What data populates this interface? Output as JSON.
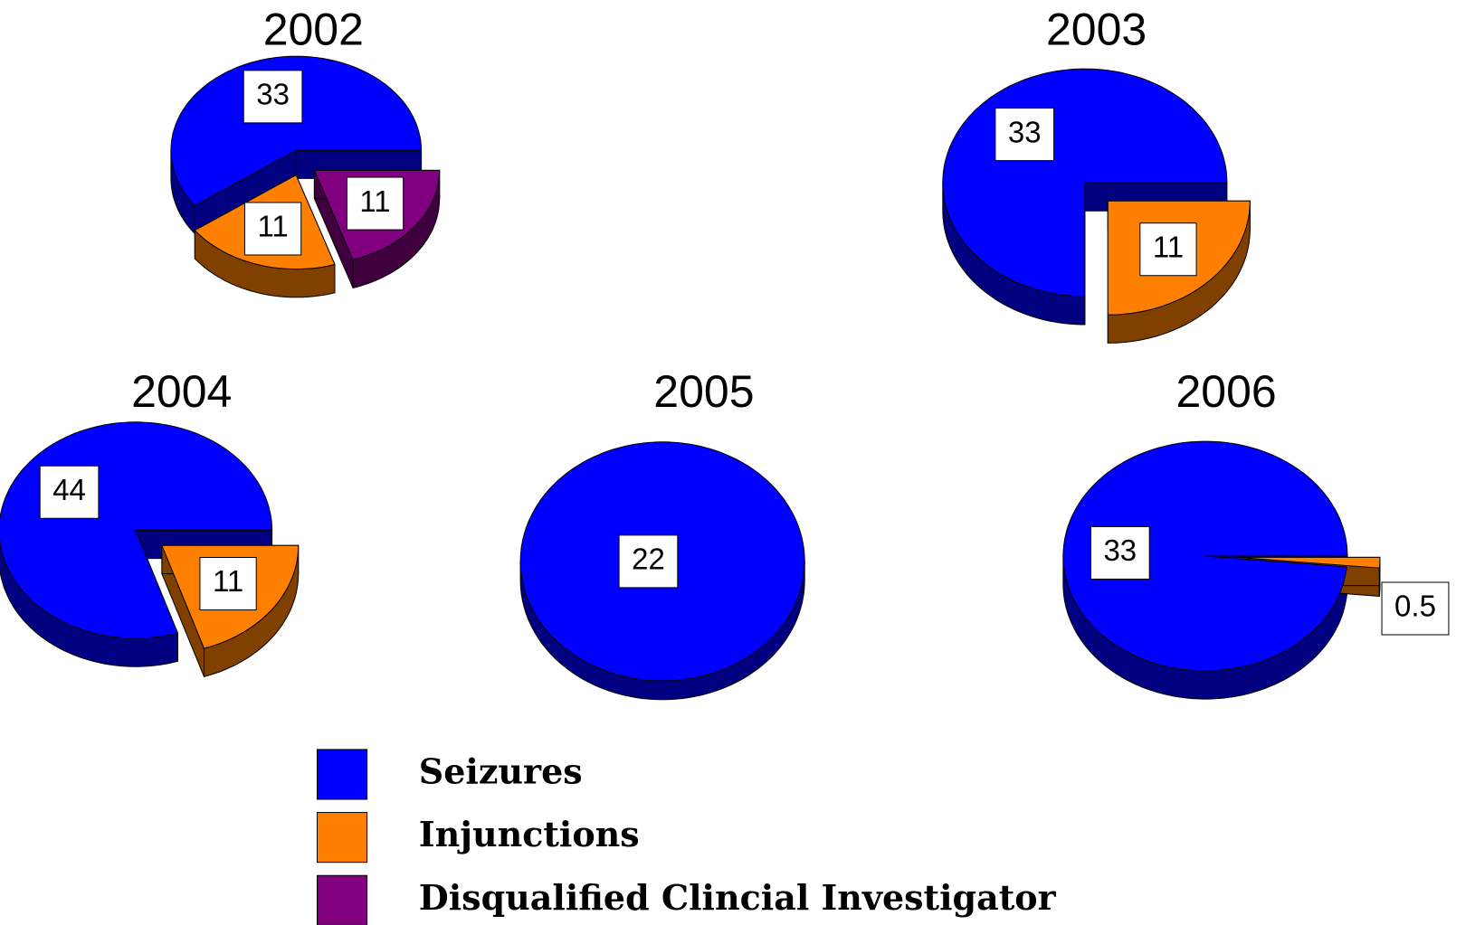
{
  "legend": {
    "categories": [
      "Seizures",
      "Injunctions",
      "Disqualified Clincial Investigator"
    ],
    "colors": [
      "#0000ff",
      "#ff8000",
      "#800080"
    ]
  },
  "chart_data": [
    {
      "type": "pie",
      "title": "2002",
      "values": [
        33,
        11,
        11
      ]
    },
    {
      "type": "pie",
      "title": "2003",
      "values": [
        33,
        11,
        null
      ]
    },
    {
      "type": "pie",
      "title": "2004",
      "values": [
        44,
        11,
        null
      ]
    },
    {
      "type": "pie",
      "title": "2005",
      "values": [
        22,
        null,
        null
      ]
    },
    {
      "type": "pie",
      "title": "2006",
      "values": [
        33,
        0.5,
        null
      ]
    }
  ]
}
